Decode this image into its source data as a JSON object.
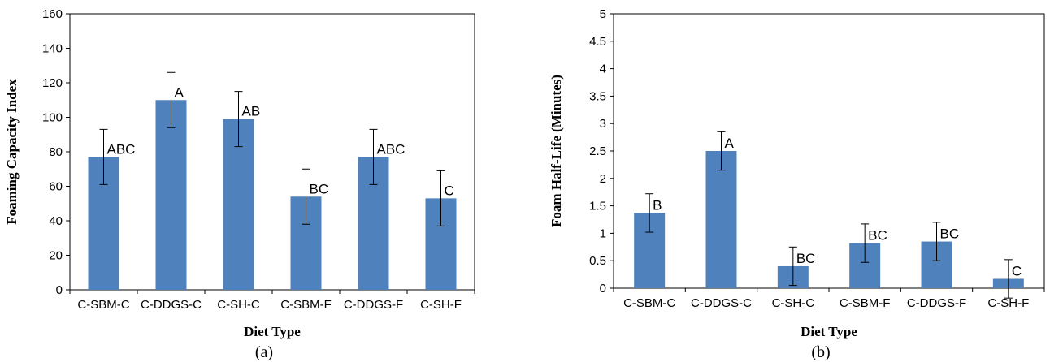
{
  "chart_data": [
    {
      "type": "bar",
      "title": "",
      "caption": "(a)",
      "xlabel": "Diet Type",
      "ylabel": "Foaming Capacity Index",
      "ylim": [
        0,
        160
      ],
      "yticks": [
        "0",
        "20",
        "40",
        "60",
        "80",
        "100",
        "120",
        "140",
        "160"
      ],
      "categories": [
        "C-SBM-C",
        "C-DDGS-C",
        "C-SH-C",
        "C-SBM-F",
        "C-DDGS-F",
        "C-SH-F"
      ],
      "values": [
        77,
        110,
        99,
        54,
        77,
        53
      ],
      "errors": [
        16,
        16,
        16,
        16,
        16,
        16
      ],
      "letters": [
        "ABC",
        "A",
        "AB",
        "BC",
        "ABC",
        "C"
      ],
      "bar_color": "#4f81bd",
      "grid": false
    },
    {
      "type": "bar",
      "title": "",
      "caption": "(b)",
      "xlabel": "Diet Type",
      "ylabel": "Foam Half-Life (Minutes)",
      "ylim": [
        0,
        5
      ],
      "yticks": [
        "0",
        "0.5",
        "1",
        "1.5",
        "2",
        "2.5",
        "3",
        "3.5",
        "4",
        "4.5",
        "5"
      ],
      "categories": [
        "C-SBM-C",
        "C-DDGS-C",
        "C-SH-C",
        "C-SBM-F",
        "C-DDGS-F",
        "C-SH-F"
      ],
      "values": [
        1.37,
        2.5,
        0.4,
        0.82,
        0.85,
        0.17
      ],
      "errors": [
        0.35,
        0.35,
        0.35,
        0.35,
        0.35,
        0.35
      ],
      "letters": [
        "B",
        "A",
        "BC",
        "BC",
        "BC",
        "C"
      ],
      "bar_color": "#4f81bd",
      "grid": false
    }
  ]
}
